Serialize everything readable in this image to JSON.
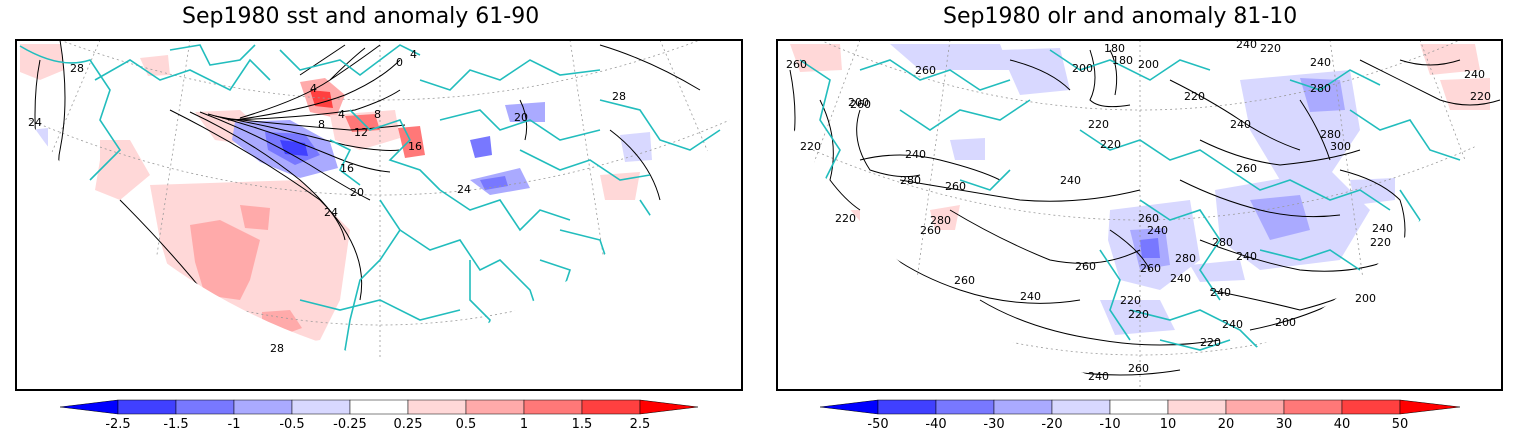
{
  "panels": [
    {
      "title": "Sep1980 sst and anomaly 61-90",
      "contour_labels": [
        "28",
        "24",
        "4",
        "0",
        "4",
        "4",
        "8",
        "8",
        "12",
        "16",
        "16",
        "20",
        "24",
        "20",
        "24",
        "28",
        "28"
      ],
      "colorbar_ticks": [
        "-2.5",
        "-1.5",
        "-1",
        "-0.5",
        "-0.25",
        "0.25",
        "0.5",
        "1",
        "1.5",
        "2.5"
      ]
    },
    {
      "title": "Sep1980 olr and anomaly 81-10",
      "contour_labels": [
        "260",
        "260",
        "200",
        "180",
        "200",
        "180",
        "200",
        "240",
        "220",
        "220",
        "240",
        "220",
        "220",
        "240",
        "280",
        "300",
        "240",
        "260",
        "280",
        "260",
        "220",
        "240",
        "260",
        "280",
        "280",
        "260",
        "220",
        "240",
        "260",
        "240",
        "260",
        "260",
        "280",
        "240",
        "240",
        "260",
        "220",
        "240",
        "200",
        "220",
        "240",
        "260",
        "240",
        "220",
        "200",
        "240",
        "220",
        "280",
        "240",
        "220"
      ],
      "colorbar_ticks": [
        "-50",
        "-40",
        "-30",
        "-20",
        "-10",
        "10",
        "20",
        "30",
        "40",
        "50"
      ]
    }
  ],
  "colors": {
    "coastline": "#22bdbd",
    "contour": "#000000",
    "neg_scale": [
      "#0000ff",
      "#4040ff",
      "#7878ff",
      "#aaaaff",
      "#d8d8ff"
    ],
    "pos_scale": [
      "#ffd8d8",
      "#ffaaaa",
      "#ff7878",
      "#ff4040",
      "#ff0000"
    ]
  }
}
